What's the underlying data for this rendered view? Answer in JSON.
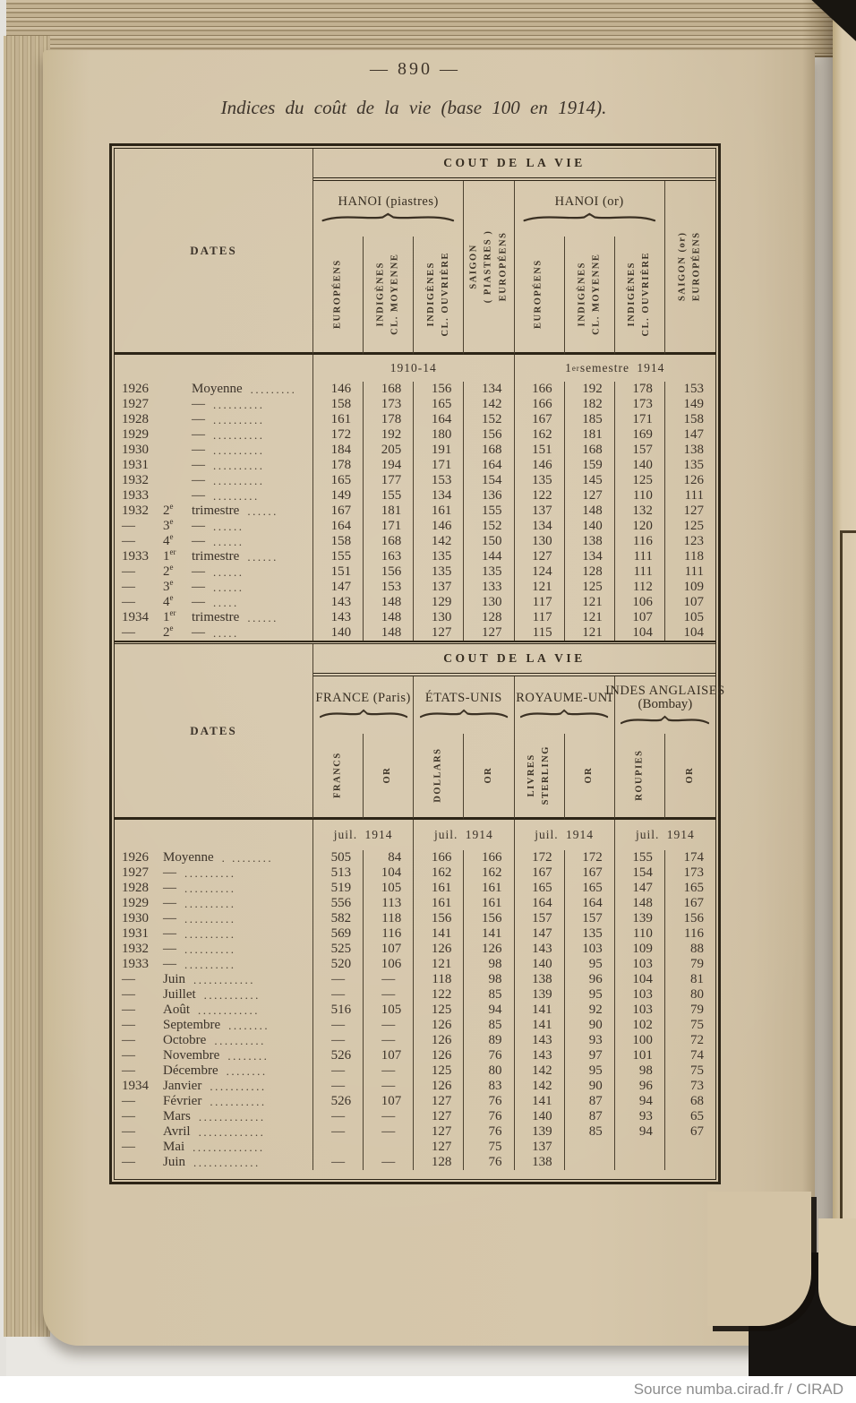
{
  "page": {
    "number": "— 890 —",
    "title": "Indices du coût de la vie (base 100 en 1914)."
  },
  "footer": {
    "source": "Source numba.cirad.fr / CIRAD"
  },
  "colors": {
    "paper": "#d4c5a9",
    "ink": "#3c332a",
    "frame": "#2d2517"
  },
  "tables": [
    {
      "dates_header": "DATES",
      "section_header": "COUT DE LA VIE",
      "groups": [
        {
          "label": "HANOI (piastres)",
          "span": 3,
          "brace": true
        },
        {
          "vlabel": [
            "SAIGON",
            "( PIASTRES )",
            "EUROPÉENS"
          ],
          "span": 1
        },
        {
          "label": "HANOI (or)",
          "span": 3,
          "brace": true
        },
        {
          "vlabel": [
            "SAIGON (or)",
            "EUROPÉENS"
          ],
          "span": 1
        }
      ],
      "vcols": [
        [
          "EUROPÉENS"
        ],
        [
          "INDIGÈNES",
          "CL. MOYENNE"
        ],
        [
          "INDIGÈNES",
          "CL. OUVRIÈRE"
        ],
        null,
        [
          "EUROPÉENS"
        ],
        [
          "INDIGÈNES",
          "CL. MOYENNE"
        ],
        [
          "INDIGÈNES",
          "CL. OUVRIÈRE"
        ],
        null
      ],
      "subheaders": [
        {
          "t": "1910-14",
          "span": 4
        },
        {
          "t": "1",
          "sup": "er",
          "t2": " semestre 1914",
          "span": 4
        }
      ],
      "rows": [
        {
          "y": "1926",
          "n": "Moyenne",
          "d": ".........",
          "v": [
            "146",
            "168",
            "156",
            "134",
            "166",
            "192",
            "178",
            "153"
          ]
        },
        {
          "y": "1927",
          "n": "—",
          "d": "..........",
          "v": [
            "158",
            "173",
            "165",
            "142",
            "166",
            "182",
            "173",
            "149"
          ]
        },
        {
          "y": "1928",
          "n": "—",
          "d": "..........",
          "v": [
            "161",
            "178",
            "164",
            "152",
            "167",
            "185",
            "171",
            "158"
          ]
        },
        {
          "y": "1929",
          "n": "—",
          "d": "..........",
          "v": [
            "172",
            "192",
            "180",
            "156",
            "162",
            "181",
            "169",
            "147"
          ]
        },
        {
          "y": "1930",
          "n": "—",
          "d": "..........",
          "v": [
            "184",
            "205",
            "191",
            "168",
            "151",
            "168",
            "157",
            "138"
          ]
        },
        {
          "y": "1931",
          "n": "—",
          "d": "..........",
          "v": [
            "178",
            "194",
            "171",
            "164",
            "146",
            "159",
            "140",
            "135"
          ]
        },
        {
          "y": "1932",
          "n": "—",
          "d": "..........",
          "v": [
            "165",
            "177",
            "153",
            "154",
            "135",
            "145",
            "125",
            "126"
          ]
        },
        {
          "y": "1933",
          "n": "—",
          "d": ".........",
          "v": [
            "149",
            "155",
            "134",
            "136",
            "122",
            "127",
            "110",
            "111"
          ]
        },
        {
          "y": "1932",
          "o": "2",
          "s": "e",
          "n": "trimestre",
          "d": "......",
          "v": [
            "167",
            "181",
            "161",
            "155",
            "137",
            "148",
            "132",
            "127"
          ]
        },
        {
          "y": "—",
          "o": "3",
          "s": "e",
          "n": "—",
          "d": "......",
          "v": [
            "164",
            "171",
            "146",
            "152",
            "134",
            "140",
            "120",
            "125"
          ]
        },
        {
          "y": "—",
          "o": "4",
          "s": "e",
          "n": "—",
          "d": "......",
          "v": [
            "158",
            "168",
            "142",
            "150",
            "130",
            "138",
            "116",
            "123"
          ]
        },
        {
          "y": "1933",
          "o": "1",
          "s": "er",
          "n": "trimestre",
          "d": "......",
          "v": [
            "155",
            "163",
            "135",
            "144",
            "127",
            "134",
            "111",
            "118"
          ]
        },
        {
          "y": "—",
          "o": "2",
          "s": "e",
          "n": "—",
          "d": "......",
          "v": [
            "151",
            "156",
            "135",
            "135",
            "124",
            "128",
            "111",
            "111"
          ]
        },
        {
          "y": "—",
          "o": "3",
          "s": "e",
          "n": "—",
          "d": "......",
          "v": [
            "147",
            "153",
            "137",
            "133",
            "121",
            "125",
            "112",
            "109"
          ]
        },
        {
          "y": "—",
          "o": "4",
          "s": "e",
          "n": "—",
          "d": ".....",
          "v": [
            "143",
            "148",
            "129",
            "130",
            "117",
            "121",
            "106",
            "107"
          ]
        },
        {
          "y": "1934",
          "o": "1",
          "s": "er",
          "n": "trimestre",
          "d": "......",
          "v": [
            "143",
            "148",
            "130",
            "128",
            "117",
            "121",
            "107",
            "105"
          ]
        },
        {
          "y": "—",
          "o": "2",
          "s": "e",
          "n": "—",
          "d": ".....",
          "v": [
            "140",
            "148",
            "127",
            "127",
            "115",
            "121",
            "104",
            "104"
          ]
        }
      ]
    },
    {
      "dates_header": "DATES",
      "section_header": "COUT DE LA VIE",
      "groups": [
        {
          "label": "FRANCE (Paris)",
          "span": 2,
          "brace": true
        },
        {
          "label": "ÉTATS-UNIS",
          "span": 2,
          "brace": true
        },
        {
          "label": "ROYAUME-UNI",
          "span": 2,
          "brace": true
        },
        {
          "label": "INDES ANGLAISES",
          "label2": "(Bombay)",
          "span": 2,
          "brace": true
        }
      ],
      "vcols": [
        [
          "FRANCS"
        ],
        [
          "OR"
        ],
        [
          "DOLLARS"
        ],
        [
          "OR"
        ],
        [
          "LIVRES",
          "STERLING"
        ],
        [
          "OR"
        ],
        [
          "ROUPIES"
        ],
        [
          "OR"
        ]
      ],
      "subheaders": [
        {
          "t": "juil. 1914",
          "span": 2
        },
        {
          "t": "juil. 1914",
          "span": 2
        },
        {
          "t": "juil. 1914",
          "span": 2
        },
        {
          "t": "juil. 1914",
          "span": 2
        }
      ],
      "rows": [
        {
          "y": "1926",
          "n": "Moyenne",
          "d": ". ........",
          "v": [
            "505",
            "84",
            "166",
            "166",
            "172",
            "172",
            "155",
            "174"
          ]
        },
        {
          "y": "1927",
          "n": "—",
          "d": "..........",
          "v": [
            "513",
            "104",
            "162",
            "162",
            "167",
            "167",
            "154",
            "173"
          ]
        },
        {
          "y": "1928",
          "n": "—",
          "d": "..........",
          "v": [
            "519",
            "105",
            "161",
            "161",
            "165",
            "165",
            "147",
            "165"
          ]
        },
        {
          "y": "1929",
          "n": "—",
          "d": "..........",
          "v": [
            "556",
            "113",
            "161",
            "161",
            "164",
            "164",
            "148",
            "167"
          ]
        },
        {
          "y": "1930",
          "n": "—",
          "d": "..........",
          "v": [
            "582",
            "118",
            "156",
            "156",
            "157",
            "157",
            "139",
            "156"
          ]
        },
        {
          "y": "1931",
          "n": "—",
          "d": "..........",
          "v": [
            "569",
            "116",
            "141",
            "141",
            "147",
            "135",
            "110",
            "116"
          ]
        },
        {
          "y": "1932",
          "n": "—",
          "d": "..........",
          "v": [
            "525",
            "107",
            "126",
            "126",
            "143",
            "103",
            "109",
            "88"
          ]
        },
        {
          "y": "1933",
          "n": "—",
          "d": "..........",
          "v": [
            "520",
            "106",
            "121",
            "98",
            "140",
            "95",
            "103",
            "79"
          ]
        },
        {
          "y": "—",
          "n": "Juin",
          "d": "............",
          "v": [
            "—",
            "—",
            "118",
            "98",
            "138",
            "96",
            "104",
            "81"
          ]
        },
        {
          "y": "—",
          "n": "Juillet",
          "d": "...........",
          "v": [
            "—",
            "—",
            "122",
            "85",
            "139",
            "95",
            "103",
            "80"
          ]
        },
        {
          "y": "—",
          "n": "Août",
          "d": "............",
          "v": [
            "516",
            "105",
            "125",
            "94",
            "141",
            "92",
            "103",
            "79"
          ]
        },
        {
          "y": "—",
          "n": "Septembre",
          "d": "........",
          "v": [
            "—",
            "—",
            "126",
            "85",
            "141",
            "90",
            "102",
            "75"
          ]
        },
        {
          "y": "—",
          "n": "Octobre",
          "d": "..........",
          "v": [
            "—",
            "—",
            "126",
            "89",
            "143",
            "93",
            "100",
            "72"
          ]
        },
        {
          "y": "—",
          "n": "Novembre",
          "d": "........",
          "v": [
            "526",
            "107",
            "126",
            "76",
            "143",
            "97",
            "101",
            "74"
          ]
        },
        {
          "y": "—",
          "n": "Décembre",
          "d": "........",
          "v": [
            "—",
            "—",
            "125",
            "80",
            "142",
            "95",
            "98",
            "75"
          ]
        },
        {
          "y": "1934",
          "n": "Janvier",
          "d": "...........",
          "v": [
            "—",
            "—",
            "126",
            "83",
            "142",
            "90",
            "96",
            "73"
          ]
        },
        {
          "y": "—",
          "n": "Février",
          "d": "...........",
          "v": [
            "526",
            "107",
            "127",
            "76",
            "141",
            "87",
            "94",
            "68"
          ]
        },
        {
          "y": "—",
          "n": "Mars",
          "d": ".............",
          "v": [
            "—",
            "—",
            "127",
            "76",
            "140",
            "87",
            "93",
            "65"
          ]
        },
        {
          "y": "—",
          "n": "Avril",
          "d": ".............",
          "v": [
            "—",
            "—",
            "127",
            "76",
            "139",
            "85",
            "94",
            "67"
          ]
        },
        {
          "y": "—",
          "n": "Mai",
          "d": "..............",
          "v": [
            "",
            "",
            "127",
            "75",
            "137",
            "",
            "",
            ""
          ]
        },
        {
          "y": "—",
          "n": "Juin",
          "d": ".............",
          "v": [
            "—",
            "—",
            "128",
            "76",
            "138",
            "",
            "",
            ""
          ]
        }
      ]
    }
  ]
}
